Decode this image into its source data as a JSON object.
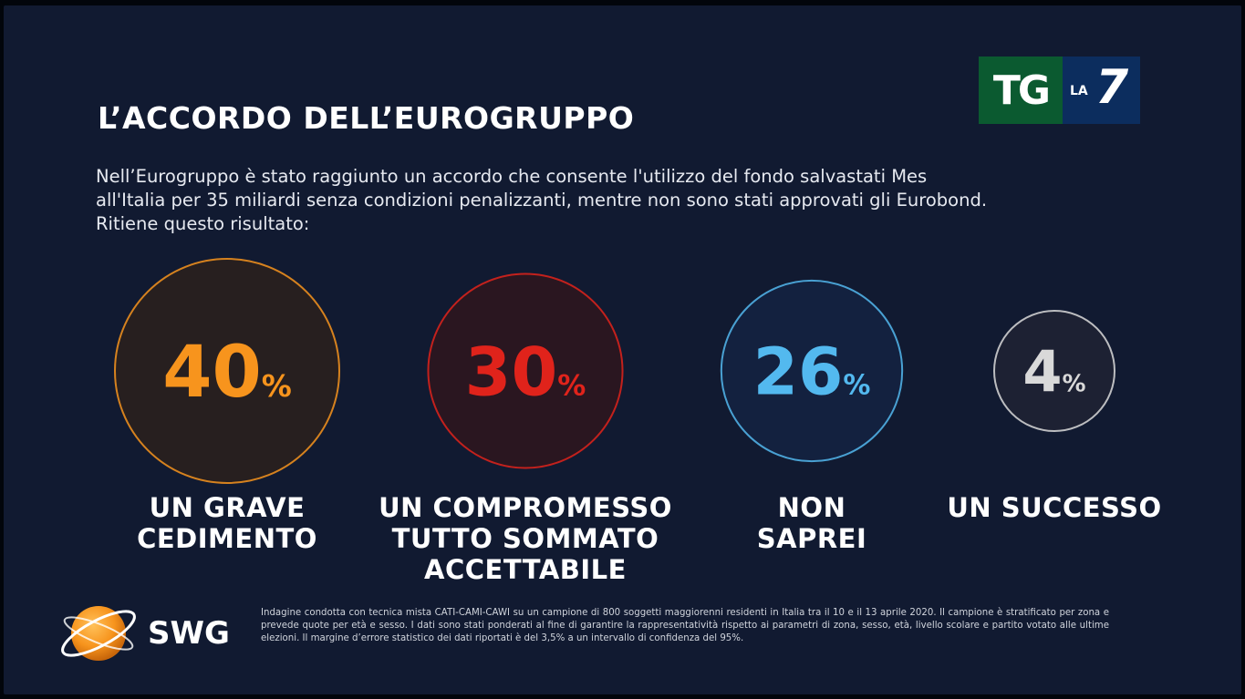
{
  "title": "L’ACCORDO DELL’EUROGRUPPO",
  "question": {
    "line1": "Nell’Eurogruppo è stato raggiunto un accordo che consente l'utilizzo del fondo salvastati Mes",
    "line2": "all'Italia per 35 miliardi senza condizioni penalizzanti, mentre non sono stati approvati gli Eurobond.",
    "line3": "Ritiene questo risultato:"
  },
  "logo": {
    "tg": "TG",
    "la": "LA",
    "seven": "7",
    "tg_color": "#0b5a30",
    "la7_color": "#0c2d5e"
  },
  "chart_data": {
    "type": "pie",
    "unit": "%",
    "categories": [
      "UN GRAVE CEDIMENTO",
      "UN COMPROMESSO TUTTO SOMMATO ACCETTABILE",
      "NON SAPREI",
      "UN SUCCESSO"
    ],
    "values": [
      40,
      30,
      26,
      4
    ],
    "colors": [
      "#f7941d",
      "#e0231b",
      "#53b9ef",
      "#d9d9d9"
    ],
    "labels": [
      [
        "UN GRAVE",
        "CEDIMENTO"
      ],
      [
        "UN COMPROMESSO",
        "TUTTO SOMMATO",
        "ACCETTABILE"
      ],
      [
        "NON",
        "SAPREI"
      ],
      [
        "UN SUCCESSO"
      ]
    ]
  },
  "brand": {
    "name": "SWG",
    "icon": "globe-icon",
    "accent": "#f7941d"
  },
  "footnote": "Indagine condotta con tecnica mista CATI-CAMI-CAWI su un campione di 800 soggetti maggiorenni residenti in Italia tra il 10 e il 13 aprile 2020. Il campione è stratificato per zona e prevede quote per età e sesso. I dati sono stati ponderati al fine di garantire la rappresentatività rispetto ai parametri di zona, sesso, età, livello scolare e partito votato alle ultime elezioni. Il margine d’errore statistico dei dati riportati è del 3,5% a un intervallo di confidenza del 95%."
}
